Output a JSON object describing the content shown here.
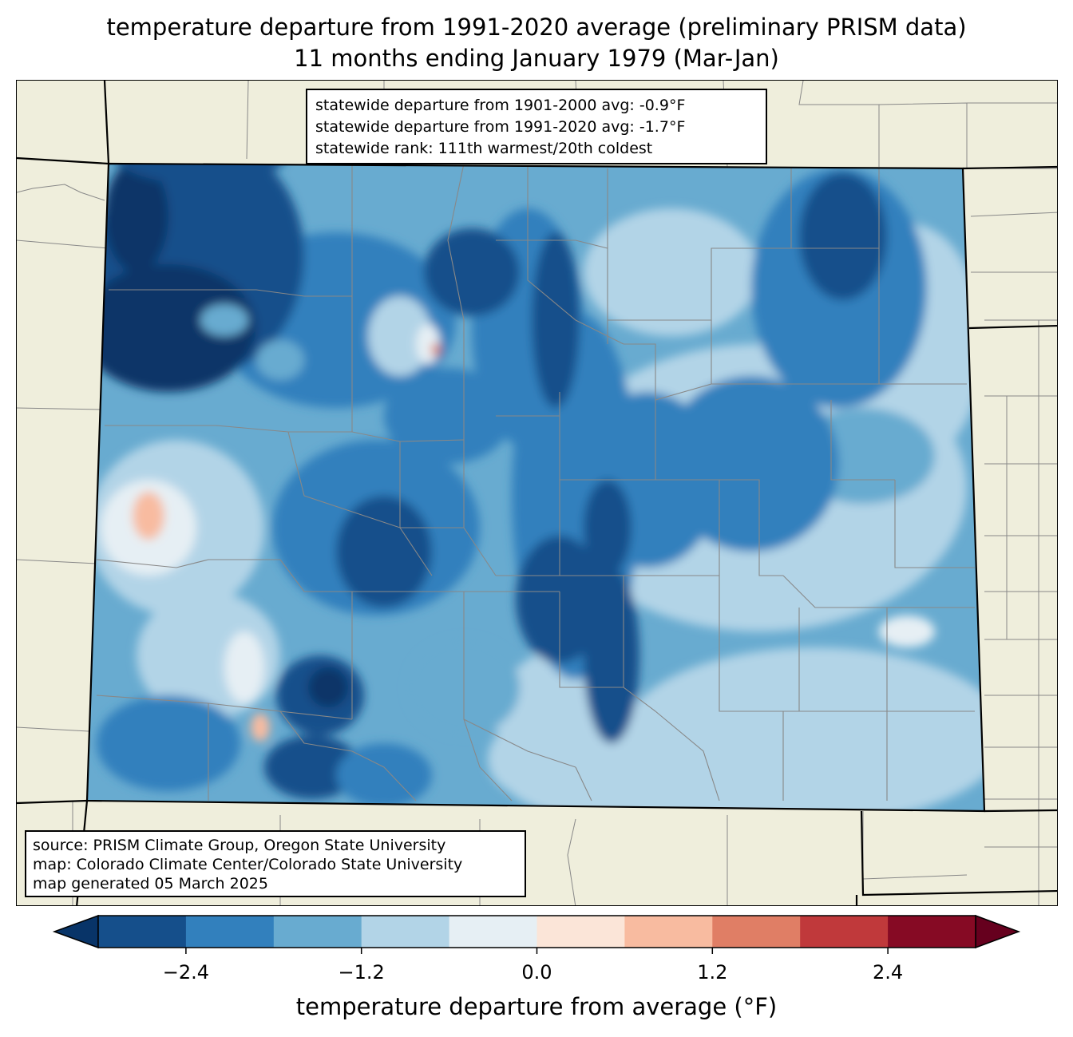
{
  "title": {
    "line1": "temperature departure from 1991-2020 average (preliminary PRISM data)",
    "line2": "11 months ending January 1979 (Mar-Jan)"
  },
  "stats": {
    "line1": "statewide departure from 1901-2000 avg: -0.9°F",
    "line2": "statewide departure from 1991-2020 avg: -1.7°F",
    "line3": "statewide rank: 111th warmest/20th coldest"
  },
  "source": {
    "line1": "source: PRISM Climate Group, Oregon State University",
    "line2": "map: Colorado Climate Center/Colorado State University",
    "line3": "map generated 05 March 2025"
  },
  "colorbar": {
    "label": "temperature departure from average (°F)",
    "ticks": [
      "−2.4",
      "−1.2",
      "0.0",
      "1.2",
      "2.4"
    ],
    "tick_values": [
      -2.4,
      -1.2,
      0.0,
      1.2,
      2.4
    ],
    "bounds": [
      -3.0,
      -2.4,
      -1.8,
      -1.2,
      -0.6,
      0.0,
      0.6,
      1.2,
      1.8,
      2.4,
      3.0
    ],
    "colors": [
      "#154f8b",
      "#3280bd",
      "#68abd0",
      "#b2d4e7",
      "#e6eff4",
      "#fbe5d8",
      "#f8bba0",
      "#e07e65",
      "#c0393b",
      "#860a24"
    ],
    "under_color": "#083468",
    "over_color": "#66001e"
  },
  "map_colors": {
    "background": "#efeedc",
    "county_lines": "#888888",
    "state_lines": "#000000"
  }
}
